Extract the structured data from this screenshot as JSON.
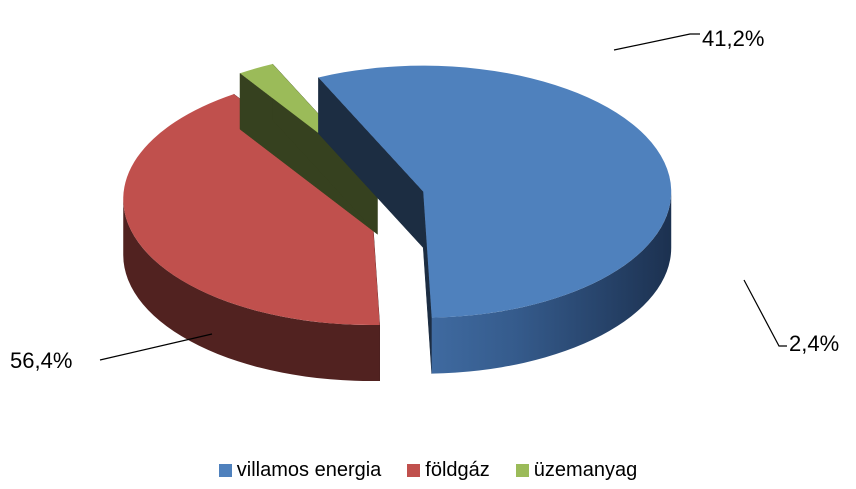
{
  "chart_data": {
    "type": "pie",
    "style": "3d-exploded",
    "title": "",
    "categories": [
      "villamos energia",
      "földgáz",
      "üzemanyag"
    ],
    "values": [
      56.4,
      41.2,
      2.4
    ],
    "labels": [
      "56,4%",
      "41,2%",
      "2,4%"
    ],
    "colors": [
      "#4F81BD",
      "#C0504D",
      "#9BBB59"
    ],
    "legend_position": "bottom"
  }
}
